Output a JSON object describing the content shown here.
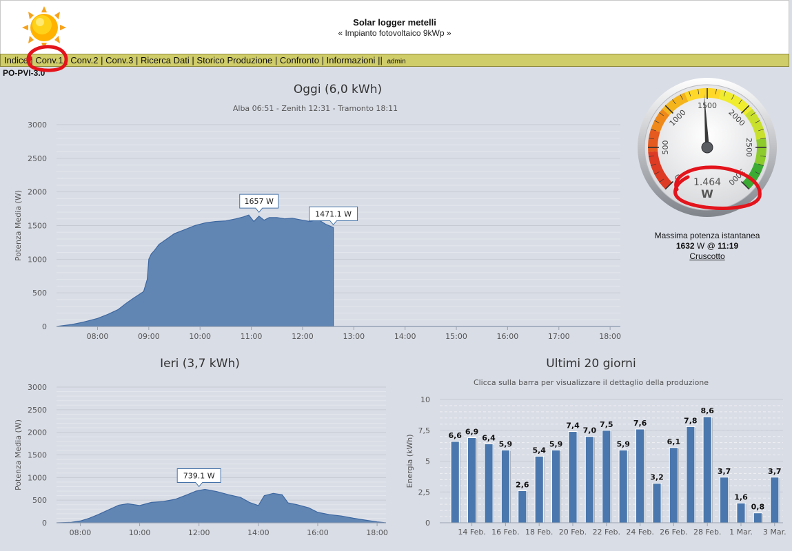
{
  "header": {
    "title": "Solar logger metelli",
    "subtitle": "« Impianto fotovoltaico 9kWp »"
  },
  "nav": {
    "items": [
      "Indice",
      "Conv.1",
      "Conv.2",
      "Conv.3",
      "Ricerca Dati",
      "Storico Produzione",
      "Confronto",
      "Informazioni"
    ],
    "separator": "|",
    "double_separator": "||",
    "user": "admin"
  },
  "device": "PO-PVI-3.0",
  "today": {
    "title": "Oggi (6,0 kWh)",
    "subtitle": "Alba 06:51 - Zenith 12:31 - Tramonto 18:11"
  },
  "yesterday": {
    "title": "Ieri (3,7 kWh)"
  },
  "last20": {
    "title": "Ultimi 20 giorni",
    "subtitle": "Clicca sulla barra per visualizzare il dettaglio della produzione"
  },
  "gauge": {
    "value_text": "1.464",
    "unit": "W",
    "value": 1464,
    "max": 3000,
    "tick_labels": [
      "0",
      "500",
      "1000",
      "1500",
      "2000",
      "2500",
      "3000"
    ]
  },
  "max_power": {
    "caption": "Massima potenza istantanea",
    "value": "1632",
    "unit_at": "W @",
    "time": "11:19",
    "link": "Cruscotto"
  },
  "colors": {
    "area_fill": "#6186b4",
    "area_stroke": "#3d67a0",
    "bar": "#4a77ad",
    "navbar": "#cfcc6a",
    "annotation": "#e3141c"
  },
  "chart_data": [
    {
      "type": "area",
      "title": "Oggi (6,0 kWh)",
      "subtitle": "Alba 06:51 - Zenith 12:31 - Tramonto 18:11",
      "ylabel": "Potenza Media (W)",
      "ylim": [
        0,
        3000
      ],
      "yticks": [
        "0",
        "500",
        "1000",
        "1500",
        "2000",
        "2500",
        "3000"
      ],
      "xlim": [
        7.2,
        18.2
      ],
      "xticks": [
        "08:00",
        "09:00",
        "10:00",
        "11:00",
        "12:00",
        "13:00",
        "14:00",
        "15:00",
        "16:00",
        "17:00",
        "18:00"
      ],
      "xtick_values": [
        8,
        9,
        10,
        11,
        12,
        13,
        14,
        15,
        16,
        17,
        18
      ],
      "grid": true,
      "x": [
        7.2,
        7.5,
        7.7,
        8.0,
        8.2,
        8.4,
        8.55,
        8.7,
        8.8,
        8.9,
        8.97,
        9.0,
        9.05,
        9.1,
        9.2,
        9.35,
        9.5,
        9.7,
        9.9,
        10.1,
        10.3,
        10.5,
        10.7,
        10.85,
        10.95,
        11.05,
        11.15,
        11.25,
        11.35,
        11.5,
        11.65,
        11.8,
        12.0,
        12.15,
        12.3,
        12.45,
        12.6,
        12.6,
        13.0,
        14.0,
        15.0,
        16.0,
        17.0,
        18.0,
        18.2
      ],
      "y": [
        0,
        30,
        60,
        120,
        180,
        250,
        340,
        420,
        470,
        520,
        700,
        1000,
        1080,
        1120,
        1220,
        1300,
        1380,
        1440,
        1500,
        1540,
        1560,
        1570,
        1600,
        1630,
        1657,
        1560,
        1640,
        1580,
        1620,
        1620,
        1600,
        1610,
        1580,
        1560,
        1590,
        1520,
        1471.1,
        0,
        0,
        0,
        0,
        0,
        0,
        0,
        0
      ],
      "annotations": [
        {
          "label": "1657 W",
          "x": 11.15,
          "y": 1657
        },
        {
          "label": "1471.1 W",
          "x": 12.6,
          "y": 1471.1
        }
      ]
    },
    {
      "type": "area",
      "title": "Ieri (3,7 kWh)",
      "ylabel": "Potenza Media (W)",
      "ylim": [
        0,
        3000
      ],
      "yticks": [
        "0",
        "500",
        "1000",
        "1500",
        "2000",
        "2500",
        "3000"
      ],
      "xlim": [
        7.2,
        18.3
      ],
      "xticks": [
        "08:00",
        "10:00",
        "12:00",
        "14:00",
        "16:00",
        "18:00"
      ],
      "xtick_values": [
        8,
        10,
        12,
        14,
        16,
        18
      ],
      "grid": true,
      "x": [
        7.2,
        7.7,
        8.0,
        8.3,
        8.6,
        9.0,
        9.3,
        9.6,
        10.0,
        10.4,
        10.8,
        11.2,
        11.6,
        11.9,
        12.2,
        12.6,
        13.0,
        13.4,
        13.7,
        14.0,
        14.2,
        14.5,
        14.8,
        15.0,
        15.3,
        15.7,
        16.0,
        16.4,
        16.8,
        17.2,
        17.6,
        18.0,
        18.3
      ],
      "y": [
        0,
        10,
        40,
        100,
        180,
        300,
        390,
        420,
        380,
        450,
        470,
        520,
        620,
        700,
        739.1,
        690,
        620,
        560,
        450,
        380,
        600,
        650,
        620,
        440,
        400,
        330,
        230,
        180,
        150,
        100,
        60,
        20,
        0
      ],
      "annotations": [
        {
          "label": "739.1 W",
          "x": 12.0,
          "y": 739.1
        }
      ]
    },
    {
      "type": "bar",
      "title": "Ultimi 20 giorni",
      "subtitle": "Clicca sulla barra per visualizzare il dettaglio della produzione",
      "ylabel": "Energia (kWh)",
      "ylim": [
        0,
        10
      ],
      "yticks": [
        "0",
        "2,5",
        "5",
        "7,5",
        "10"
      ],
      "xtick_labels": [
        "14 Feb.",
        "16 Feb.",
        "18 Feb.",
        "20 Feb.",
        "22 Feb.",
        "24 Feb.",
        "26 Feb.",
        "28 Feb.",
        "1 Mar.",
        "3 Mar."
      ],
      "xtick_index": [
        1,
        3,
        5,
        7,
        9,
        11,
        13,
        15,
        17,
        19
      ],
      "values": [
        6.6,
        6.9,
        6.4,
        5.9,
        2.6,
        5.4,
        5.9,
        7.4,
        7.0,
        7.5,
        5.9,
        7.6,
        3.2,
        6.1,
        7.8,
        8.6,
        3.7,
        1.6,
        0.8,
        3.7
      ],
      "labels": [
        "6,6",
        "6,9",
        "6,4",
        "5,9",
        "2,6",
        "5,4",
        "5,9",
        "7,4",
        "7,0",
        "7,5",
        "5,9",
        "7,6",
        "3,2",
        "6,1",
        "7,8",
        "8,6",
        "3,7",
        "1,6",
        "0,8",
        "3,7"
      ],
      "grid": true
    }
  ]
}
